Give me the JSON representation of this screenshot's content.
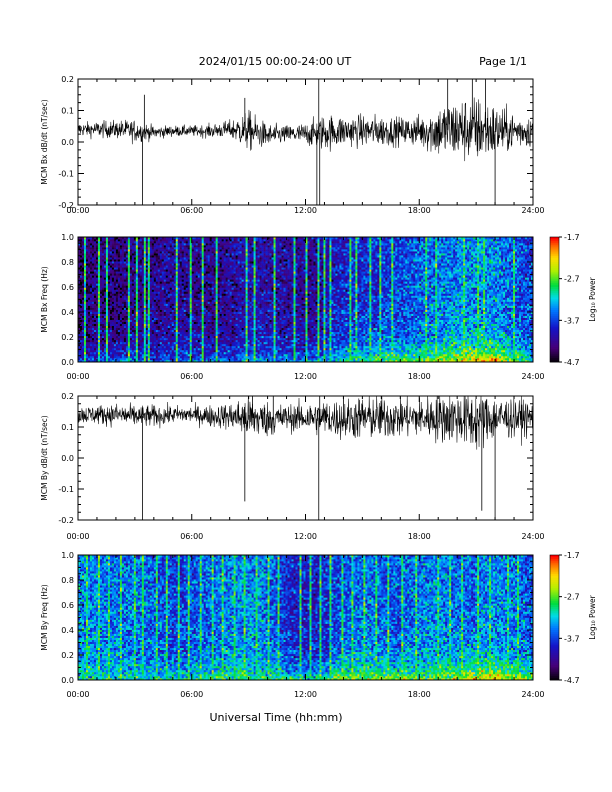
{
  "header": {
    "title": "2024/01/15  00:00-24:00 UT",
    "page": "Page 1/1"
  },
  "footer": {
    "xlabel": "Universal Time (hh:mm)"
  },
  "chart_data": [
    {
      "type": "line",
      "ylabel": "MCM Bx dB/dt (nT/sec)",
      "xlim": [
        0,
        24
      ],
      "ylim": [
        -0.2,
        0.2
      ],
      "xticks": [
        "00:00",
        "06:00",
        "12:00",
        "18:00",
        "24:00"
      ],
      "yticks": [
        "-0.2",
        "-0.1",
        "0.0",
        "0.1",
        "0.2"
      ],
      "series": [
        {
          "x": [
            0,
            1,
            2,
            3,
            4,
            5,
            6,
            7,
            8,
            9,
            10,
            11,
            12,
            13,
            14,
            15,
            16,
            17,
            18,
            19,
            20,
            21,
            22,
            23,
            24
          ],
          "y": [
            0.04,
            0.04,
            0.04,
            0.035,
            0.03,
            0.035,
            0.035,
            0.035,
            0.04,
            0.035,
            0.02,
            0.025,
            0.025,
            0.03,
            0.035,
            0.035,
            0.035,
            0.035,
            0.035,
            0.035,
            0.04,
            0.04,
            0.035,
            0.035,
            0.035
          ],
          "amp": [
            0.015,
            0.018,
            0.02,
            0.025,
            0.015,
            0.012,
            0.012,
            0.015,
            0.02,
            0.045,
            0.025,
            0.02,
            0.025,
            0.04,
            0.035,
            0.035,
            0.035,
            0.03,
            0.035,
            0.06,
            0.07,
            0.075,
            0.06,
            0.04,
            0.035
          ]
        }
      ],
      "spikes": [
        {
          "x": 3.4,
          "y": -0.2
        },
        {
          "x": 3.5,
          "y": 0.15
        },
        {
          "x": 8.8,
          "y": 0.14
        },
        {
          "x": 12.6,
          "y": -0.2
        },
        {
          "x": 12.7,
          "y": 0.2
        },
        {
          "x": 12.75,
          "y": -0.2
        },
        {
          "x": 19.5,
          "y": 0.2
        },
        {
          "x": 20.8,
          "y": 0.2
        },
        {
          "x": 21.5,
          "y": 0.2
        },
        {
          "x": 22.0,
          "y": -0.2
        }
      ]
    },
    {
      "type": "heatmap",
      "ylabel": "MCM Bx Freq (Hz)",
      "colorbar_label": "Log₁₀ Power",
      "xlim": [
        0,
        24
      ],
      "ylim": [
        0,
        1.0
      ],
      "xticks": [
        "00:00",
        "06:00",
        "12:00",
        "18:00",
        "24:00"
      ],
      "yticks": [
        "0.0",
        "0.2",
        "0.4",
        "0.6",
        "0.8",
        "1.0"
      ],
      "colorbar_ticks": [
        "-1.7",
        "-2.7",
        "-3.7",
        "-4.7"
      ],
      "zlim": [
        -4.7,
        -1.7
      ],
      "background_power": [
        -4.4,
        -4.3,
        -4.3,
        -4.2,
        -4.2,
        -4.1,
        -4.2,
        -4.2,
        -4.1,
        -4.0,
        -4.1,
        -4.1,
        -4.2,
        -3.9,
        -3.8,
        -3.8,
        -3.7,
        -3.6,
        -3.5,
        -3.4,
        -3.4,
        -3.4,
        -3.6,
        -3.7
      ],
      "low_freq_power": [
        -3.6,
        -3.6,
        -3.5,
        -3.5,
        -3.5,
        -3.5,
        -3.5,
        -3.5,
        -3.4,
        -3.4,
        -3.4,
        -3.5,
        -3.4,
        -3.0,
        -2.8,
        -2.7,
        -2.7,
        -2.6,
        -2.5,
        -2.3,
        -2.1,
        -2.1,
        -2.5,
        -2.9
      ],
      "streaks": [
        0.3,
        1.1,
        1.5,
        2.6,
        3.1,
        3.5,
        3.7,
        5.2,
        5.9,
        6.5,
        7.3,
        8.8,
        9.3,
        10.3,
        11.4,
        12.0,
        12.6,
        12.9,
        13.3,
        14.3,
        14.6,
        15.4,
        15.9,
        16.5,
        18.3,
        18.8,
        20.3,
        21.0,
        21.4,
        22.9
      ]
    },
    {
      "type": "line",
      "ylabel": "MCM By dB/dt (nT/sec)",
      "xlim": [
        0,
        24
      ],
      "ylim": [
        -0.2,
        0.2
      ],
      "xticks": [
        "00:00",
        "06:00",
        "12:00",
        "18:00",
        "24:00"
      ],
      "yticks": [
        "-0.2",
        "-0.1",
        "0.0",
        "0.1",
        "0.2"
      ],
      "series": [
        {
          "x": [
            0,
            1,
            2,
            3,
            4,
            5,
            6,
            7,
            8,
            9,
            10,
            11,
            12,
            13,
            14,
            15,
            16,
            17,
            18,
            19,
            20,
            21,
            22,
            23,
            24
          ],
          "y": [
            0.14,
            0.14,
            0.14,
            0.135,
            0.135,
            0.14,
            0.14,
            0.135,
            0.135,
            0.13,
            0.125,
            0.13,
            0.13,
            0.13,
            0.125,
            0.13,
            0.13,
            0.13,
            0.13,
            0.13,
            0.13,
            0.12,
            0.13,
            0.13,
            0.13
          ],
          "amp": [
            0.02,
            0.022,
            0.025,
            0.025,
            0.025,
            0.02,
            0.02,
            0.025,
            0.03,
            0.05,
            0.04,
            0.03,
            0.035,
            0.04,
            0.045,
            0.05,
            0.05,
            0.045,
            0.045,
            0.055,
            0.06,
            0.07,
            0.05,
            0.045,
            0.04
          ]
        }
      ],
      "spikes": [
        {
          "x": 3.4,
          "y": -0.2
        },
        {
          "x": 8.8,
          "y": -0.14
        },
        {
          "x": 9.2,
          "y": 0.2
        },
        {
          "x": 10.3,
          "y": 0.2
        },
        {
          "x": 12.7,
          "y": -0.2
        },
        {
          "x": 12.75,
          "y": 0.2
        },
        {
          "x": 14.0,
          "y": 0.2
        },
        {
          "x": 21.3,
          "y": -0.17
        },
        {
          "x": 22.0,
          "y": -0.2
        }
      ]
    },
    {
      "type": "heatmap",
      "ylabel": "MCM By Freq (Hz)",
      "colorbar_label": "Log₁₀ Power",
      "xlim": [
        0,
        24
      ],
      "ylim": [
        0,
        1.0
      ],
      "xticks": [
        "00:00",
        "06:00",
        "12:00",
        "18:00",
        "24:00"
      ],
      "yticks": [
        "0.0",
        "0.2",
        "0.4",
        "0.6",
        "0.8",
        "1.0"
      ],
      "colorbar_ticks": [
        "-1.7",
        "-2.7",
        "-3.7",
        "-4.7"
      ],
      "zlim": [
        -4.7,
        -1.7
      ],
      "background_power": [
        -3.4,
        -3.4,
        -3.5,
        -3.5,
        -3.6,
        -3.7,
        -3.6,
        -3.5,
        -3.4,
        -3.4,
        -3.6,
        -3.9,
        -3.9,
        -3.7,
        -3.5,
        -3.5,
        -3.6,
        -3.5,
        -3.4,
        -3.5,
        -3.5,
        -3.4,
        -3.5,
        -3.6
      ],
      "low_freq_power": [
        -3.0,
        -3.0,
        -3.0,
        -3.0,
        -3.0,
        -3.0,
        -2.9,
        -2.9,
        -2.8,
        -2.8,
        -2.9,
        -3.1,
        -3.0,
        -2.6,
        -2.5,
        -2.5,
        -2.6,
        -2.6,
        -2.5,
        -2.4,
        -2.2,
        -2.1,
        -2.3,
        -2.6
      ],
      "streaks": [
        0.4,
        1.0,
        1.6,
        2.2,
        2.9,
        3.4,
        4.1,
        4.6,
        5.3,
        5.8,
        6.4,
        7.1,
        7.6,
        8.2,
        8.7,
        9.4,
        10.0,
        10.5,
        11.7,
        12.2,
        12.7,
        13.3,
        13.9,
        14.4,
        15.1,
        15.7,
        16.3,
        17.0,
        17.8,
        18.9,
        19.6,
        20.2,
        21.0,
        21.7,
        22.6,
        23.2
      ]
    }
  ]
}
